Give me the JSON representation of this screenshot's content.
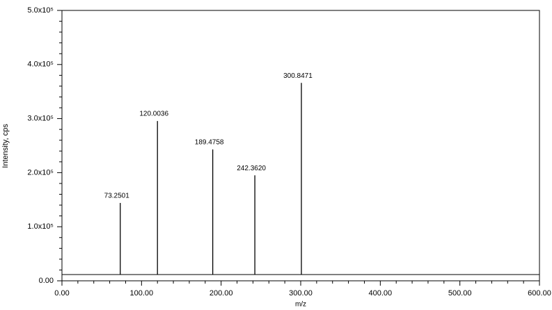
{
  "chart_data": {
    "type": "stem",
    "x_label": "m/z",
    "y_label": "Intensity, cps",
    "x": [
      73.2501,
      120.0036,
      189.4758,
      242.362,
      300.8471
    ],
    "values": [
      144000,
      295500,
      243000,
      195000,
      366000
    ],
    "value_labels": [
      "73.2501",
      "120.0036",
      "189.4758",
      "242.3620",
      "300.8471"
    ],
    "color": "#000000",
    "baseline": 11600,
    "xlim": [
      0,
      600
    ],
    "xticks": [
      {
        "value": 0,
        "label": "0.00"
      },
      {
        "value": 100,
        "label": "100.00"
      },
      {
        "value": 200,
        "label": "200.00"
      },
      {
        "value": 300,
        "label": "300.00"
      },
      {
        "value": 400,
        "label": "400.00"
      },
      {
        "value": 500,
        "label": "500.00"
      },
      {
        "value": 600,
        "label": "600.00"
      }
    ],
    "xminorticks": [
      20,
      40,
      60,
      80,
      120,
      140,
      160,
      180,
      220,
      240,
      260,
      280,
      320,
      340,
      360,
      380,
      420,
      440,
      460,
      480,
      520,
      540,
      560,
      580
    ],
    "ylim": [
      0,
      500000
    ],
    "yticks": [
      {
        "value": 0,
        "label": "0.00"
      },
      {
        "value": 100000,
        "label": "1.0x10⁵"
      },
      {
        "value": 200000,
        "label": "2.0x10⁵"
      },
      {
        "value": 300000,
        "label": "3.0x10⁵"
      },
      {
        "value": 400000,
        "label": "4.0x10⁵"
      },
      {
        "value": 500000,
        "label": "5.0x10⁵"
      }
    ],
    "yminorticks": [
      20000,
      40000,
      60000,
      80000,
      120000,
      140000,
      160000,
      180000,
      220000,
      240000,
      260000,
      280000,
      320000,
      340000,
      360000,
      380000,
      420000,
      440000,
      460000,
      480000
    ]
  }
}
